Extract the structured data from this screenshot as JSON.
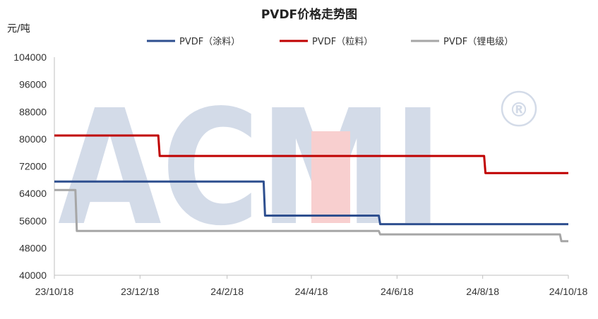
{
  "chart_data": {
    "type": "line",
    "title": "PVDF价格走势图",
    "ylabel": "元/吨",
    "xlabel": "",
    "ylim": [
      40000,
      104000
    ],
    "yticks": [
      40000,
      48000,
      56000,
      64000,
      72000,
      80000,
      88000,
      96000,
      104000
    ],
    "xlim": [
      "2023-10-18",
      "2024-10-18"
    ],
    "xticks": [
      {
        "date": "2023-10-18",
        "label": "23/10/18"
      },
      {
        "date": "2023-12-18",
        "label": "23/12/18"
      },
      {
        "date": "2024-02-18",
        "label": "24/2/18"
      },
      {
        "date": "2024-04-18",
        "label": "24/4/18"
      },
      {
        "date": "2024-06-18",
        "label": "24/6/18"
      },
      {
        "date": "2024-08-18",
        "label": "24/8/18"
      },
      {
        "date": "2024-10-18",
        "label": "24/10/18"
      }
    ],
    "grid": false,
    "legend_position": "top",
    "series": [
      {
        "name": "PVDF（涂料）",
        "color": "#2e4f8f",
        "points": [
          {
            "x": "2023-10-18",
            "y": 67500
          },
          {
            "x": "2024-03-15",
            "y": 67500
          },
          {
            "x": "2024-03-16",
            "y": 57500
          },
          {
            "x": "2024-06-05",
            "y": 57500
          },
          {
            "x": "2024-06-06",
            "y": 55000
          },
          {
            "x": "2024-10-18",
            "y": 55000
          }
        ]
      },
      {
        "name": "PVDF（粒料）",
        "color": "#c00000",
        "points": [
          {
            "x": "2023-10-18",
            "y": 81000
          },
          {
            "x": "2023-12-31",
            "y": 81000
          },
          {
            "x": "2024-01-01",
            "y": 75000
          },
          {
            "x": "2024-08-19",
            "y": 75000
          },
          {
            "x": "2024-08-20",
            "y": 70000
          },
          {
            "x": "2024-10-18",
            "y": 70000
          }
        ]
      },
      {
        "name": "PVDF（锂电级）",
        "color": "#a6a6a6",
        "points": [
          {
            "x": "2023-10-18",
            "y": 65000
          },
          {
            "x": "2023-11-02",
            "y": 65000
          },
          {
            "x": "2023-11-03",
            "y": 53000
          },
          {
            "x": "2024-06-05",
            "y": 53000
          },
          {
            "x": "2024-06-06",
            "y": 52000
          },
          {
            "x": "2024-10-12",
            "y": 52000
          },
          {
            "x": "2024-10-13",
            "y": 50000
          },
          {
            "x": "2024-10-18",
            "y": 50000
          }
        ]
      }
    ]
  },
  "watermark": {
    "text": "ACMI",
    "mark": "®",
    "color": "#a9b8d3",
    "accent_color": "#f2a0a0"
  }
}
